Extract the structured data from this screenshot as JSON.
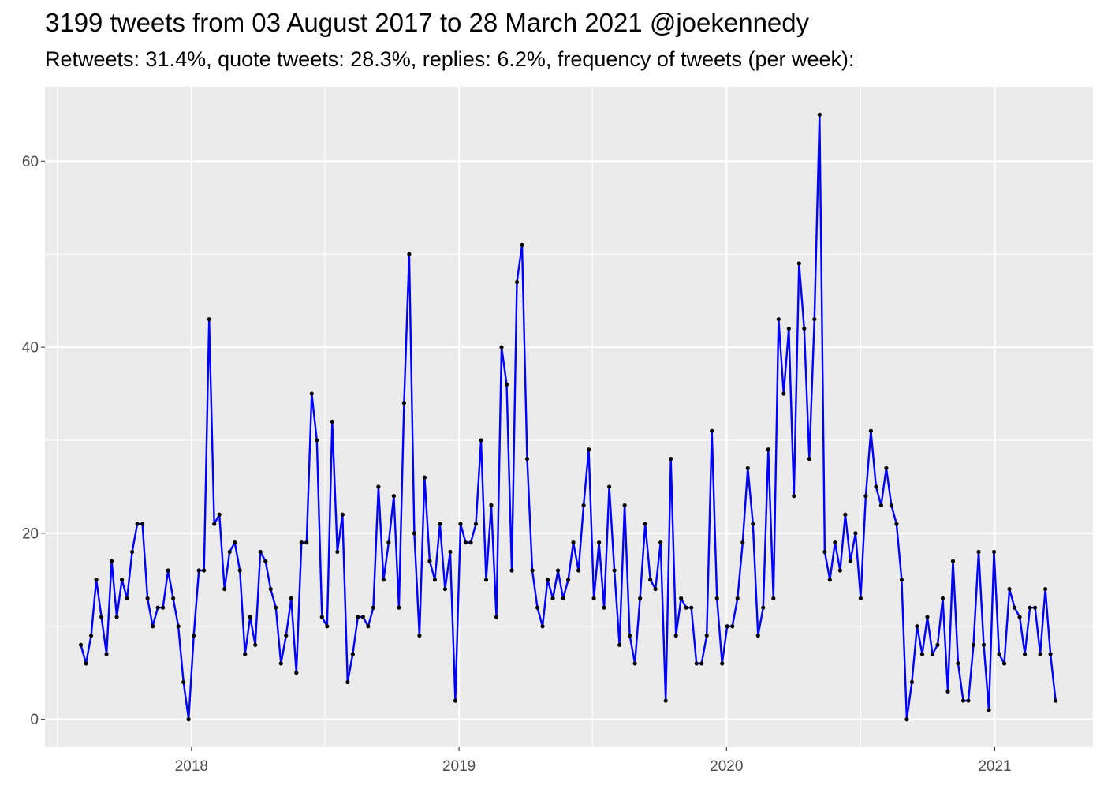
{
  "chart_data": {
    "type": "line",
    "title": "3199 tweets from 03 August 2017 to 28 March 2021 @joekennedy",
    "subtitle": "Retweets: 31.4%, quote tweets: 28.3%, replies: 6.2%, frequency of tweets (per week):",
    "xlabel": "",
    "ylabel": "",
    "x_ticks": [
      "2018",
      "2019",
      "2020",
      "2021"
    ],
    "y_ticks": [
      0,
      20,
      40,
      60
    ],
    "ylim": [
      -3,
      68
    ],
    "xlim": [
      "2017-06-15",
      "2021-05-15"
    ],
    "grid": true,
    "line_color": "#0000ff",
    "point_color": "#000000",
    "panel_color": "#ebebeb",
    "series": [
      {
        "x": [
          "2017-08-03",
          "2017-08-10",
          "2017-08-17",
          "2017-08-24",
          "2017-08-31",
          "2017-09-07",
          "2017-09-14",
          "2017-09-21",
          "2017-09-28",
          "2017-10-05",
          "2017-10-12",
          "2017-10-19",
          "2017-10-26",
          "2017-11-02",
          "2017-11-09",
          "2017-11-16",
          "2017-11-23",
          "2017-11-30",
          "2017-12-07",
          "2017-12-14",
          "2017-12-21",
          "2017-12-28",
          "2018-01-04",
          "2018-01-11",
          "2018-01-18",
          "2018-01-25",
          "2018-02-01",
          "2018-02-08",
          "2018-02-15",
          "2018-02-22",
          "2018-03-01",
          "2018-03-08",
          "2018-03-15",
          "2018-03-22",
          "2018-03-29",
          "2018-04-05",
          "2018-04-12",
          "2018-04-19",
          "2018-04-26",
          "2018-05-03",
          "2018-05-10",
          "2018-05-17",
          "2018-05-24",
          "2018-05-31",
          "2018-06-07",
          "2018-06-14",
          "2018-06-21",
          "2018-06-28",
          "2018-07-05",
          "2018-07-12",
          "2018-07-19",
          "2018-07-26",
          "2018-08-02",
          "2018-08-09",
          "2018-08-16",
          "2018-08-23",
          "2018-08-30",
          "2018-09-06",
          "2018-09-13",
          "2018-09-20",
          "2018-09-27",
          "2018-10-04",
          "2018-10-11",
          "2018-10-18",
          "2018-10-25",
          "2018-11-01",
          "2018-11-08",
          "2018-11-15",
          "2018-11-22",
          "2018-11-29",
          "2018-12-06",
          "2018-12-13",
          "2018-12-20",
          "2018-12-27",
          "2019-01-03",
          "2019-01-10",
          "2019-01-17",
          "2019-01-24",
          "2019-01-31",
          "2019-02-07",
          "2019-02-14",
          "2019-02-21",
          "2019-02-28",
          "2019-03-07",
          "2019-03-14",
          "2019-03-21",
          "2019-03-28",
          "2019-04-04",
          "2019-04-11",
          "2019-04-18",
          "2019-04-25",
          "2019-05-02",
          "2019-05-09",
          "2019-05-16",
          "2019-05-23",
          "2019-05-30",
          "2019-06-06",
          "2019-06-13",
          "2019-06-20",
          "2019-06-27",
          "2019-07-04",
          "2019-07-11",
          "2019-07-18",
          "2019-07-25",
          "2019-08-01",
          "2019-08-08",
          "2019-08-15",
          "2019-08-22",
          "2019-08-29",
          "2019-09-05",
          "2019-09-12",
          "2019-09-19",
          "2019-09-26",
          "2019-10-03",
          "2019-10-10",
          "2019-10-17",
          "2019-10-24",
          "2019-10-31",
          "2019-11-07",
          "2019-11-14",
          "2019-11-21",
          "2019-11-28",
          "2019-12-05",
          "2019-12-12",
          "2019-12-19",
          "2019-12-26",
          "2020-01-02",
          "2020-01-09",
          "2020-01-16",
          "2020-01-23",
          "2020-01-30",
          "2020-02-06",
          "2020-02-13",
          "2020-02-20",
          "2020-02-27",
          "2020-03-05",
          "2020-03-12",
          "2020-03-19",
          "2020-03-26",
          "2020-04-02",
          "2020-04-09",
          "2020-04-16",
          "2020-04-23",
          "2020-04-30",
          "2020-05-07",
          "2020-05-14",
          "2020-05-21",
          "2020-05-28",
          "2020-06-04",
          "2020-06-11",
          "2020-06-18",
          "2020-06-25",
          "2020-07-02",
          "2020-07-09",
          "2020-07-16",
          "2020-07-23",
          "2020-07-30",
          "2020-08-06",
          "2020-08-13",
          "2020-08-20",
          "2020-08-27",
          "2020-09-03",
          "2020-09-10",
          "2020-09-17",
          "2020-09-24",
          "2020-10-01",
          "2020-10-08",
          "2020-10-15",
          "2020-10-22",
          "2020-10-29",
          "2020-11-05",
          "2020-11-12",
          "2020-11-19",
          "2020-11-26",
          "2020-12-03",
          "2020-12-10",
          "2020-12-17",
          "2020-12-24",
          "2020-12-31",
          "2021-01-07",
          "2021-01-14",
          "2021-01-21",
          "2021-01-28",
          "2021-02-04",
          "2021-02-11",
          "2021-02-18",
          "2021-02-25",
          "2021-03-04",
          "2021-03-11",
          "2021-03-18",
          "2021-03-25"
        ],
        "y": [
          8,
          6,
          9,
          15,
          11,
          7,
          17,
          11,
          15,
          13,
          18,
          21,
          21,
          13,
          10,
          12,
          12,
          16,
          13,
          10,
          4,
          0,
          9,
          16,
          16,
          43,
          21,
          22,
          14,
          18,
          19,
          16,
          7,
          11,
          8,
          18,
          17,
          14,
          12,
          6,
          9,
          13,
          5,
          19,
          19,
          35,
          30,
          11,
          10,
          32,
          18,
          22,
          4,
          7,
          11,
          11,
          10,
          12,
          25,
          15,
          19,
          24,
          12,
          34,
          50,
          20,
          9,
          26,
          17,
          15,
          21,
          14,
          18,
          2,
          21,
          19,
          19,
          21,
          30,
          15,
          23,
          11,
          40,
          36,
          16,
          47,
          51,
          28,
          16,
          12,
          10,
          15,
          13,
          16,
          13,
          15,
          19,
          16,
          23,
          29,
          13,
          19,
          12,
          25,
          16,
          8,
          23,
          9,
          6,
          13,
          21,
          15,
          14,
          19,
          2,
          28,
          9,
          13,
          12,
          12,
          6,
          6,
          9,
          31,
          13,
          6,
          10,
          10,
          13,
          19,
          27,
          21,
          9,
          12,
          29,
          13,
          43,
          35,
          42,
          24,
          49,
          42,
          28,
          43,
          65,
          18,
          15,
          19,
          16,
          22,
          17,
          20,
          13,
          24,
          31,
          25,
          23,
          27,
          23,
          21,
          15,
          0,
          4,
          10,
          7,
          11,
          7,
          8,
          13,
          3,
          17,
          6,
          2,
          2,
          8,
          18,
          8,
          1,
          18,
          7,
          6,
          14,
          12,
          11,
          7,
          12,
          12,
          7,
          14,
          7,
          2
        ]
      }
    ]
  }
}
